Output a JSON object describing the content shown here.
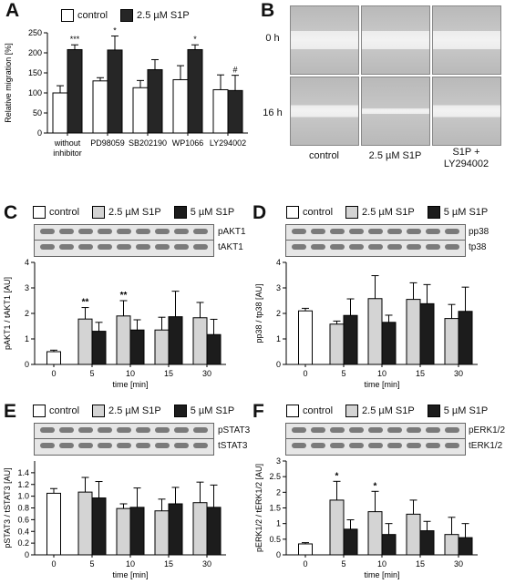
{
  "colors": {
    "control": "#ffffff",
    "s1p_2_5": "#d4d4d4",
    "s1p_5": "#1c1c1c",
    "s1p_A": "#262626"
  },
  "panels": {
    "A": {
      "letter": "A"
    },
    "B": {
      "letter": "B",
      "rows": [
        "0 h",
        "16 h"
      ],
      "cols": [
        "control",
        "2.5 µM S1P",
        "S1P +",
        "LY294002"
      ]
    },
    "C": {
      "letter": "C"
    },
    "D": {
      "letter": "D"
    },
    "E": {
      "letter": "E"
    },
    "F": {
      "letter": "F"
    }
  },
  "legend_A": {
    "control": "control",
    "s1p": "2.5 µM S1P"
  },
  "legend_common": {
    "control": "control",
    "s1p_low": "2.5 µM S1P",
    "s1p_high": "5 µM S1P"
  },
  "blots": {
    "C": [
      "pAKT1",
      "tAKT1"
    ],
    "D": [
      "pp38",
      "tp38"
    ],
    "E": [
      "pSTAT3",
      "tSTAT3"
    ],
    "F": [
      "pERK1/2",
      "tERK1/2"
    ]
  },
  "chart_data": [
    {
      "panel": "A",
      "type": "bar",
      "categories": [
        "without inhibitor",
        "PD98059",
        "SB202190",
        "WP1066",
        "LY294002"
      ],
      "category_lines": [
        [
          "without",
          "inhibitor"
        ],
        [
          "PD98059"
        ],
        [
          "SB202190"
        ],
        [
          "WP1066"
        ],
        [
          "LY294002"
        ]
      ],
      "series": [
        {
          "name": "control",
          "values": [
            100,
            130,
            113,
            133,
            108
          ],
          "errors": [
            18,
            8,
            18,
            35,
            37
          ]
        },
        {
          "name": "2.5 µM S1P",
          "values": [
            208,
            207,
            158,
            208,
            106
          ],
          "errors": [
            12,
            35,
            25,
            12,
            38
          ]
        }
      ],
      "annotations": [
        "",
        "***",
        "",
        "*",
        "",
        "",
        "",
        "*",
        "",
        "#"
      ],
      "ylabel": "Relative migration [%]",
      "ylim": [
        0,
        250
      ],
      "yticks": [
        0,
        50,
        100,
        150,
        200,
        250
      ]
    },
    {
      "panel": "C",
      "type": "bar",
      "categories": [
        "0",
        "5",
        "10",
        "15",
        "30"
      ],
      "xlabel": "time [min]",
      "ylabel": "pAKT1 / tAKT1 [AU]",
      "ylim": [
        0,
        4
      ],
      "yticks": [
        0,
        1,
        2,
        3,
        4
      ],
      "series": [
        {
          "name": "control",
          "values": [
            0.5,
            null,
            null,
            null,
            null
          ],
          "errors": [
            0.06,
            null,
            null,
            null,
            null
          ]
        },
        {
          "name": "2.5 µM S1P",
          "values": [
            null,
            1.78,
            1.9,
            1.35,
            1.83
          ],
          "errors": [
            null,
            0.45,
            0.6,
            0.5,
            0.6
          ]
        },
        {
          "name": "5 µM S1P",
          "values": [
            null,
            1.3,
            1.35,
            1.87,
            1.17
          ],
          "errors": [
            null,
            0.35,
            0.4,
            1.0,
            0.6
          ]
        }
      ],
      "stars": {
        "5": "**",
        "10": "**"
      }
    },
    {
      "panel": "D",
      "type": "bar",
      "categories": [
        "0",
        "5",
        "10",
        "15",
        "30"
      ],
      "xlabel": "time [min]",
      "ylabel": "pp38 / tp38 [AU]",
      "ylim": [
        0,
        4
      ],
      "yticks": [
        0,
        1,
        2,
        3,
        4
      ],
      "series": [
        {
          "name": "control",
          "values": [
            2.1,
            null,
            null,
            null,
            null
          ],
          "errors": [
            0.1,
            null,
            null,
            null,
            null
          ]
        },
        {
          "name": "2.5 µM S1P",
          "values": [
            null,
            1.58,
            2.58,
            2.55,
            1.8
          ],
          "errors": [
            null,
            0.12,
            0.9,
            0.65,
            0.55
          ]
        },
        {
          "name": "5 µM S1P",
          "values": [
            null,
            1.92,
            1.65,
            2.38,
            2.08
          ],
          "errors": [
            null,
            0.65,
            0.28,
            0.75,
            0.95
          ]
        }
      ],
      "stars": {}
    },
    {
      "panel": "E",
      "type": "bar",
      "categories": [
        "0",
        "5",
        "10",
        "15",
        "30"
      ],
      "xlabel": "time [min]",
      "ylabel": "pSTAT3 / tSTAT3 [AU]",
      "ylim": [
        0,
        1.6
      ],
      "yticks": [
        0,
        0.2,
        0.4,
        0.6,
        0.8,
        1.0,
        1.2,
        1.4
      ],
      "series": [
        {
          "name": "control",
          "values": [
            1.05,
            null,
            null,
            null,
            null
          ],
          "errors": [
            0.08,
            null,
            null,
            null,
            null
          ]
        },
        {
          "name": "2.5 µM S1P",
          "values": [
            null,
            1.07,
            0.79,
            0.75,
            0.89
          ],
          "errors": [
            null,
            0.25,
            0.08,
            0.2,
            0.35
          ]
        },
        {
          "name": "5 µM S1P",
          "values": [
            null,
            0.97,
            0.81,
            0.87,
            0.81
          ],
          "errors": [
            null,
            0.28,
            0.33,
            0.28,
            0.38
          ]
        }
      ],
      "stars": {}
    },
    {
      "panel": "F",
      "type": "bar",
      "categories": [
        "0",
        "5",
        "10",
        "15",
        "30"
      ],
      "xlabel": "time [min]",
      "ylabel": "pERK1/2 / tERK1/2 [AU]",
      "ylim": [
        0,
        3
      ],
      "yticks": [
        0,
        0.5,
        1,
        1.5,
        2,
        2.5,
        3
      ],
      "series": [
        {
          "name": "control",
          "values": [
            0.35,
            null,
            null,
            null,
            null
          ],
          "errors": [
            0.04,
            null,
            null,
            null,
            null
          ]
        },
        {
          "name": "2.5 µM S1P",
          "values": [
            null,
            1.75,
            1.38,
            1.3,
            0.65
          ],
          "errors": [
            null,
            0.6,
            0.65,
            0.45,
            0.55
          ]
        },
        {
          "name": "5 µM S1P",
          "values": [
            null,
            0.82,
            0.65,
            0.77,
            0.55
          ],
          "errors": [
            null,
            0.3,
            0.35,
            0.3,
            0.45
          ]
        }
      ],
      "stars": {
        "5": "*",
        "10": "*"
      }
    }
  ]
}
